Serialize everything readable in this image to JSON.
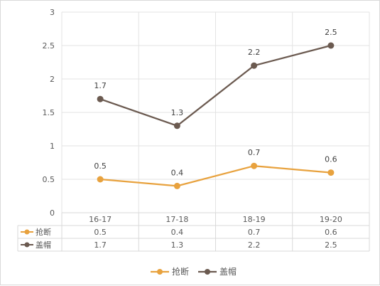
{
  "chart_data": {
    "type": "line",
    "title": "",
    "xlabel": "",
    "ylabel": "",
    "categories": [
      "16-17",
      "17-18",
      "18-19",
      "19-20"
    ],
    "yticks": [
      "0",
      "0.5",
      "1",
      "1.5",
      "2",
      "2.5",
      "3"
    ],
    "ylim": [
      0,
      3
    ],
    "grid": true,
    "legend": "bottom",
    "data_table": true,
    "series": [
      {
        "name": "抢断",
        "color": "#E8A23E",
        "values": [
          0.5,
          0.4,
          0.7,
          0.6
        ],
        "labels": [
          "0.5",
          "0.4",
          "0.7",
          "0.6"
        ]
      },
      {
        "name": "盖帽",
        "color": "#6B5A50",
        "values": [
          1.7,
          1.3,
          2.2,
          2.5
        ],
        "labels": [
          "1.7",
          "1.3",
          "2.2",
          "2.5"
        ]
      }
    ]
  }
}
